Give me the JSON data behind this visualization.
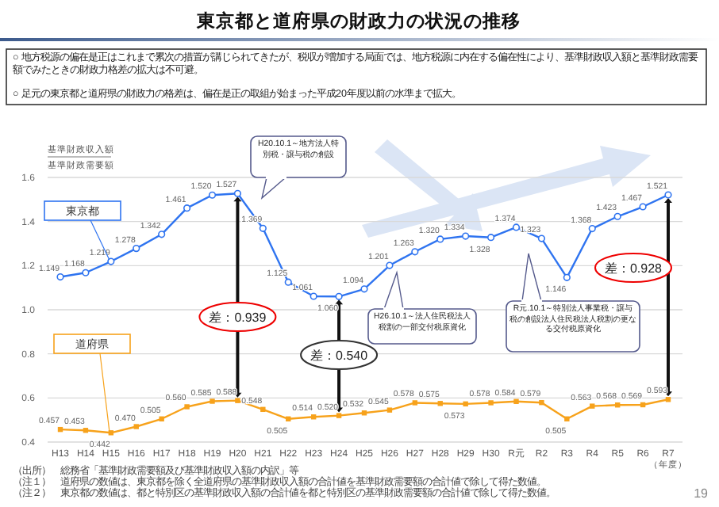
{
  "chart_data": {
    "type": "line",
    "title": "東京都と道府県の財政力の状況の推移",
    "ylabel": "基準財政収入額",
    "xlabel": "（年度）",
    "categories": [
      "H13",
      "H14",
      "H15",
      "H16",
      "H17",
      "H18",
      "H19",
      "H20",
      "H21",
      "H22",
      "H23",
      "H24",
      "H25",
      "H26",
      "H27",
      "H28",
      "H29",
      "H30",
      "R元",
      "R2",
      "R3",
      "R4",
      "R5",
      "R6",
      "R7"
    ],
    "series": [
      {
        "name": "東京都",
        "color": "#2f74f0",
        "marker": "circle",
        "values": [
          1.149,
          1.168,
          1.219,
          1.278,
          1.342,
          1.461,
          1.52,
          1.527,
          1.369,
          1.125,
          1.061,
          1.06,
          1.094,
          1.201,
          1.263,
          1.32,
          1.334,
          1.328,
          1.374,
          1.323,
          1.146,
          1.368,
          1.423,
          1.467,
          1.521
        ],
        "value_labels": [
          "1.149",
          "1.168",
          "1.219",
          "1.278",
          "1.342",
          "1.461",
          "1.520",
          "1.527",
          "1.369",
          "1.125",
          "1.061",
          "1.060",
          "1.094",
          "1.201",
          "1.263",
          "1.320",
          "1.334",
          "1.328",
          "1.374",
          "1.323",
          "1.146",
          "1.368",
          "1.423",
          "1.467",
          "1.521"
        ]
      },
      {
        "name": "道府県",
        "color": "#f7a21b",
        "marker": "square",
        "values": [
          0.457,
          0.453,
          0.442,
          0.47,
          0.505,
          0.56,
          0.585,
          0.588,
          0.548,
          0.505,
          0.514,
          0.52,
          0.532,
          0.545,
          0.578,
          0.575,
          0.573,
          0.578,
          0.584,
          0.579,
          0.505,
          0.563,
          0.568,
          0.569,
          0.593
        ],
        "value_labels": [
          "0.457",
          "0.453",
          "0.442",
          "0.470",
          "0.505",
          "0.560",
          "0.585",
          "0.588",
          "0.548",
          "0.505",
          "0.514",
          "0.520",
          "0.532",
          "0.545",
          "0.578",
          "0.575",
          "0.573",
          "0.578",
          "0.584",
          "0.579",
          "0.505",
          "0.563",
          "0.568",
          "0.569",
          "0.593"
        ]
      }
    ],
    "ylim": [
      0.4,
      1.6
    ],
    "yticks": [
      0.4,
      0.6,
      0.8,
      {
        "value": 1,
        "label": "1.0"
      },
      1.2,
      1.4,
      1.6
    ],
    "grid": "y",
    "annotations": [
      "○ 地方税源の偏在是正はこれまで累次の措置が講じられてきたが、税収が増加する局面では、地方税源に内在する偏在性により、基準財政収入額と基準財政需要額でみたときの財政力格差の拡大は不可避。",
      "○ 足元の東京都と道府県の財政力の格差は、偏在是正の取組が始まった平成20年度以前の水準まで拡大。",
      "基準財政需要額",
      "H20.10.1～地方法人特別税・譲与税の創設",
      "H26.10.1～法人住民税法人税割の一部交付税原資化",
      "R元.10.1～特別法人事業税・譲与税の創設法人住民税法人税割の更なる交付税原資化",
      "差：0.939",
      "差：0.540",
      "差：0.928",
      "（出所）　総務省「基準財政需要額及び基準財政収入額の内訳」等",
      "（注１）　道府県の数値は、東京都を除く全道府県の基準財政収入額の合計値を基準財政需要額の合計値で除して得た数値。",
      "（注２）　東京都の数値は、都と特別区の基準財政収入額の合計値を都と特別区の基準財政需要額の合計値で除して得た数値。",
      "19"
    ]
  }
}
